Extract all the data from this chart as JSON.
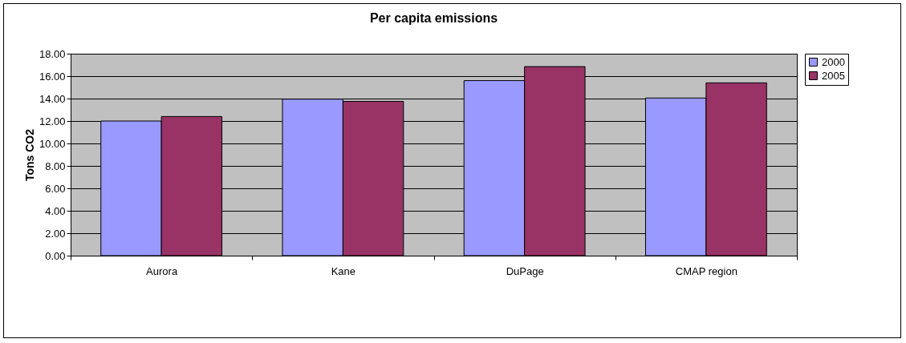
{
  "chart_data": {
    "type": "bar",
    "title": "Per capita emissions",
    "ylabel": "Tons CO2",
    "categories": [
      "Aurora",
      "Kane",
      "DuPage",
      "CMAP region"
    ],
    "series": [
      {
        "name": "2000",
        "color": "#9999ff",
        "values": [
          12.0,
          13.95,
          15.6,
          14.05
        ]
      },
      {
        "name": "2005",
        "color": "#993366",
        "values": [
          12.4,
          13.75,
          16.85,
          15.4
        ]
      }
    ],
    "ylim": [
      0,
      18
    ],
    "yticks": [
      {
        "value": 0,
        "label": "0.00"
      },
      {
        "value": 2,
        "label": "2.00"
      },
      {
        "value": 4,
        "label": "4.00"
      },
      {
        "value": 6,
        "label": "6.00"
      },
      {
        "value": 8,
        "label": "8.00"
      },
      {
        "value": 10,
        "label": "10.00"
      },
      {
        "value": 12,
        "label": "12.00"
      },
      {
        "value": 14,
        "label": "14.00"
      },
      {
        "value": 16,
        "label": "16.00"
      },
      {
        "value": 18,
        "label": "18.00"
      }
    ],
    "grid": "y",
    "legend": "right"
  }
}
